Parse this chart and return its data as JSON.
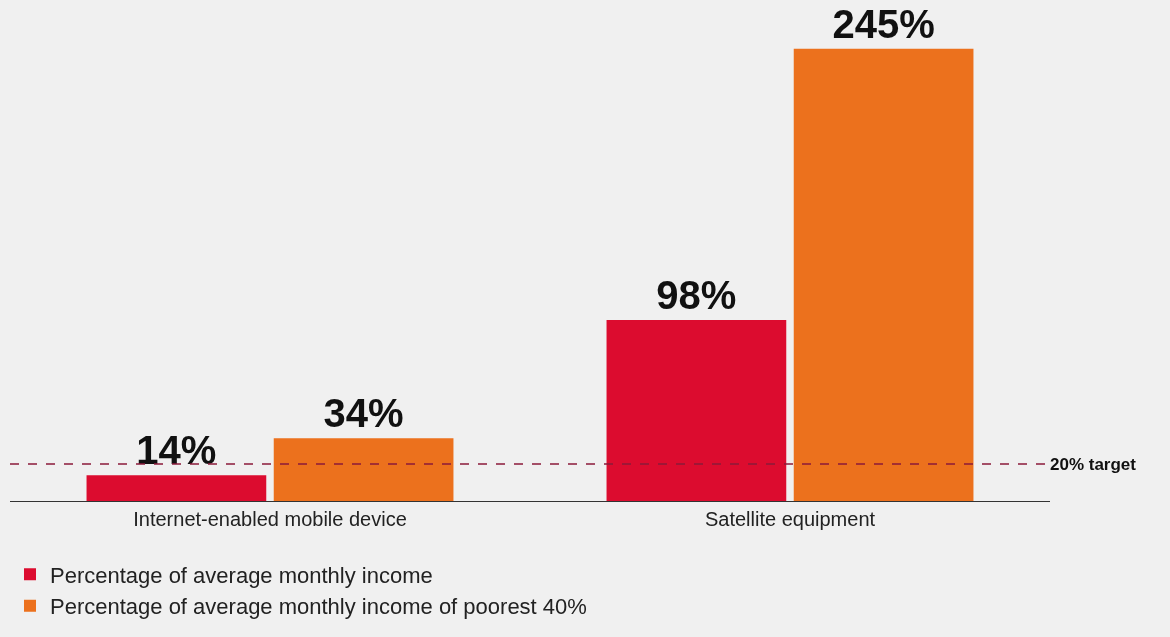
{
  "chart_data": {
    "type": "bar",
    "categories": [
      "Internet-enabled mobile device",
      "Satellite equipment"
    ],
    "series": [
      {
        "name": "Percentage of average monthly income",
        "color": "#dc0c2f",
        "values": [
          14,
          98
        ],
        "value_labels": [
          "14%",
          "98%"
        ]
      },
      {
        "name": "Percentage of average monthly income of poorest 40%",
        "color": "#ec711d",
        "values": [
          34,
          245
        ],
        "value_labels": [
          "34%",
          "245%"
        ]
      }
    ],
    "tick_labels": "x",
    "grid": false,
    "legend": "bottom",
    "ref_lines": [
      {
        "axis": "y",
        "value": 20,
        "label": "20% target",
        "color": "#8b1a3a",
        "line_style": "dashed"
      }
    ]
  }
}
